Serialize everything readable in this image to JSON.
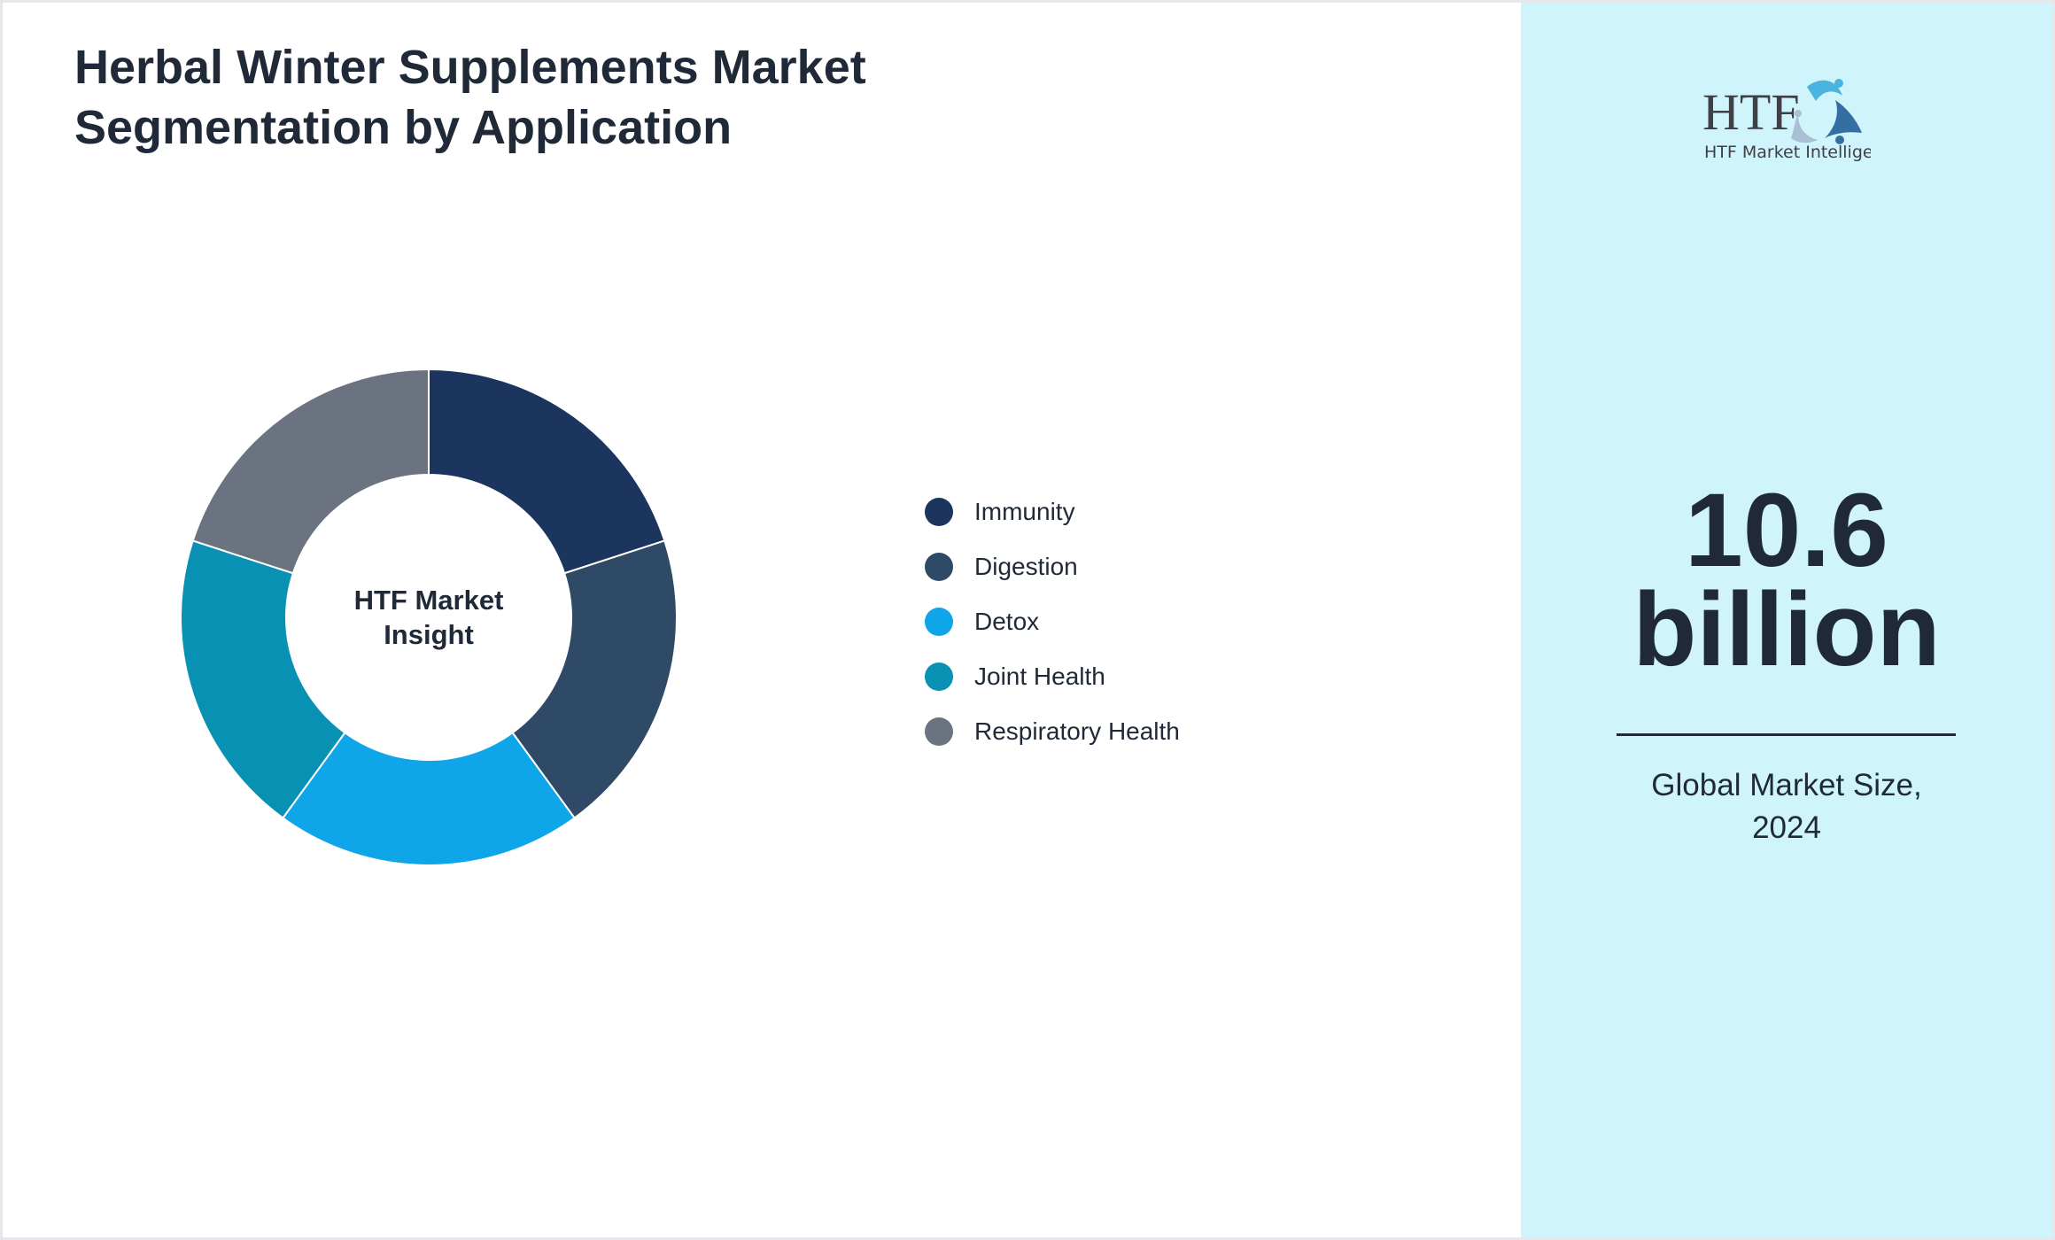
{
  "title": "Herbal Winter Supplements Market Segmentation by Application",
  "chart_data": {
    "type": "pie",
    "subtype": "donut",
    "center_label": "HTF Market Insight",
    "categories": [
      "Immunity",
      "Digestion",
      "Detox",
      "Joint Health",
      "Respiratory Health"
    ],
    "values": [
      20,
      20,
      20,
      20,
      20
    ],
    "colors": [
      "#1c355e",
      "#2e4a66",
      "#0ea5e9",
      "#0891b2",
      "#6b7280"
    ],
    "legend_position": "right"
  },
  "side_panel": {
    "logo_text": "HTF Market Intelligence",
    "value_line1": "10.6",
    "value_line2": "billion",
    "caption_line1": "Global Market Size,",
    "caption_line2": "2024",
    "background": "#cff4fc"
  }
}
